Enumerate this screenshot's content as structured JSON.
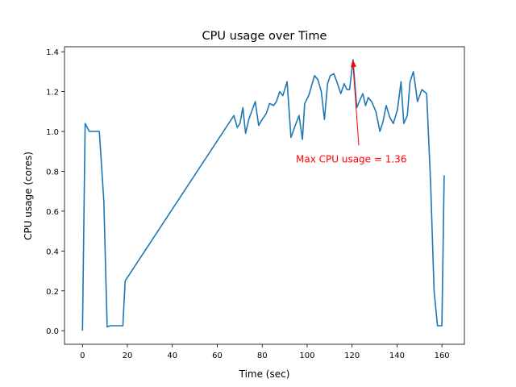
{
  "chart_data": {
    "type": "line",
    "title": "CPU usage over Time",
    "xlabel": "Time (sec)",
    "ylabel": "CPU usage (cores)",
    "xlim": [
      -8,
      170
    ],
    "ylim": [
      -0.068,
      1.425
    ],
    "xticks": [
      0,
      20,
      40,
      60,
      80,
      100,
      120,
      140,
      160
    ],
    "yticks": [
      0.0,
      0.2,
      0.4,
      0.6,
      0.8,
      1.0,
      1.2,
      1.4
    ],
    "ytick_labels": [
      "0.0",
      "0.2",
      "0.4",
      "0.6",
      "0.8",
      "1.0",
      "1.2",
      "1.4"
    ],
    "grid": false,
    "color": "#1f77b4",
    "x": [
      0,
      1.2,
      3,
      5,
      7.5,
      9.5,
      11,
      12.5,
      18,
      19,
      67.4,
      68.9,
      70.1,
      71.4,
      72.6,
      74.0,
      76.9,
      78.4,
      80,
      81.8,
      83.3,
      85.1,
      86.3,
      87.8,
      89.2,
      91.1,
      92.8,
      94.7,
      96.4,
      97.9,
      98.9,
      100.7,
      103.3,
      104.8,
      106.3,
      107.7,
      109.1,
      110.3,
      111.9,
      113.5,
      115.0,
      116.5,
      117.7,
      118.9,
      120.4,
      122.1,
      123.6,
      124.8,
      126.0,
      127.2,
      128.7,
      130.6,
      132.4,
      133.8,
      135.2,
      136.8,
      138.4,
      140.2,
      141.8,
      143.0,
      144.6,
      145.8,
      147.3,
      149.1,
      151.1,
      153.2,
      155,
      156.5,
      158,
      160,
      161
    ],
    "y": [
      0,
      1.04,
      1.0,
      1.0,
      1.0,
      0.65,
      0.02,
      0.025,
      0.025,
      0.25,
      1.08,
      1.02,
      1.04,
      1.12,
      0.99,
      1.06,
      1.15,
      1.03,
      1.06,
      1.09,
      1.14,
      1.13,
      1.15,
      1.2,
      1.18,
      1.25,
      0.97,
      1.03,
      1.08,
      0.96,
      1.14,
      1.18,
      1.28,
      1.26,
      1.2,
      1.06,
      1.24,
      1.28,
      1.29,
      1.24,
      1.19,
      1.24,
      1.21,
      1.21,
      1.36,
      1.12,
      1.16,
      1.19,
      1.13,
      1.17,
      1.15,
      1.1,
      1.0,
      1.05,
      1.13,
      1.07,
      1.04,
      1.11,
      1.25,
      1.04,
      1.08,
      1.25,
      1.3,
      1.15,
      1.21,
      1.19,
      0.73,
      0.2,
      0.025,
      0.025,
      0.78
    ],
    "annotation": {
      "text": "Max CPU usage = 1.36",
      "xy": [
        120.4,
        1.36
      ],
      "xytext": [
        95,
        0.86
      ],
      "color": "#ff0000"
    }
  }
}
